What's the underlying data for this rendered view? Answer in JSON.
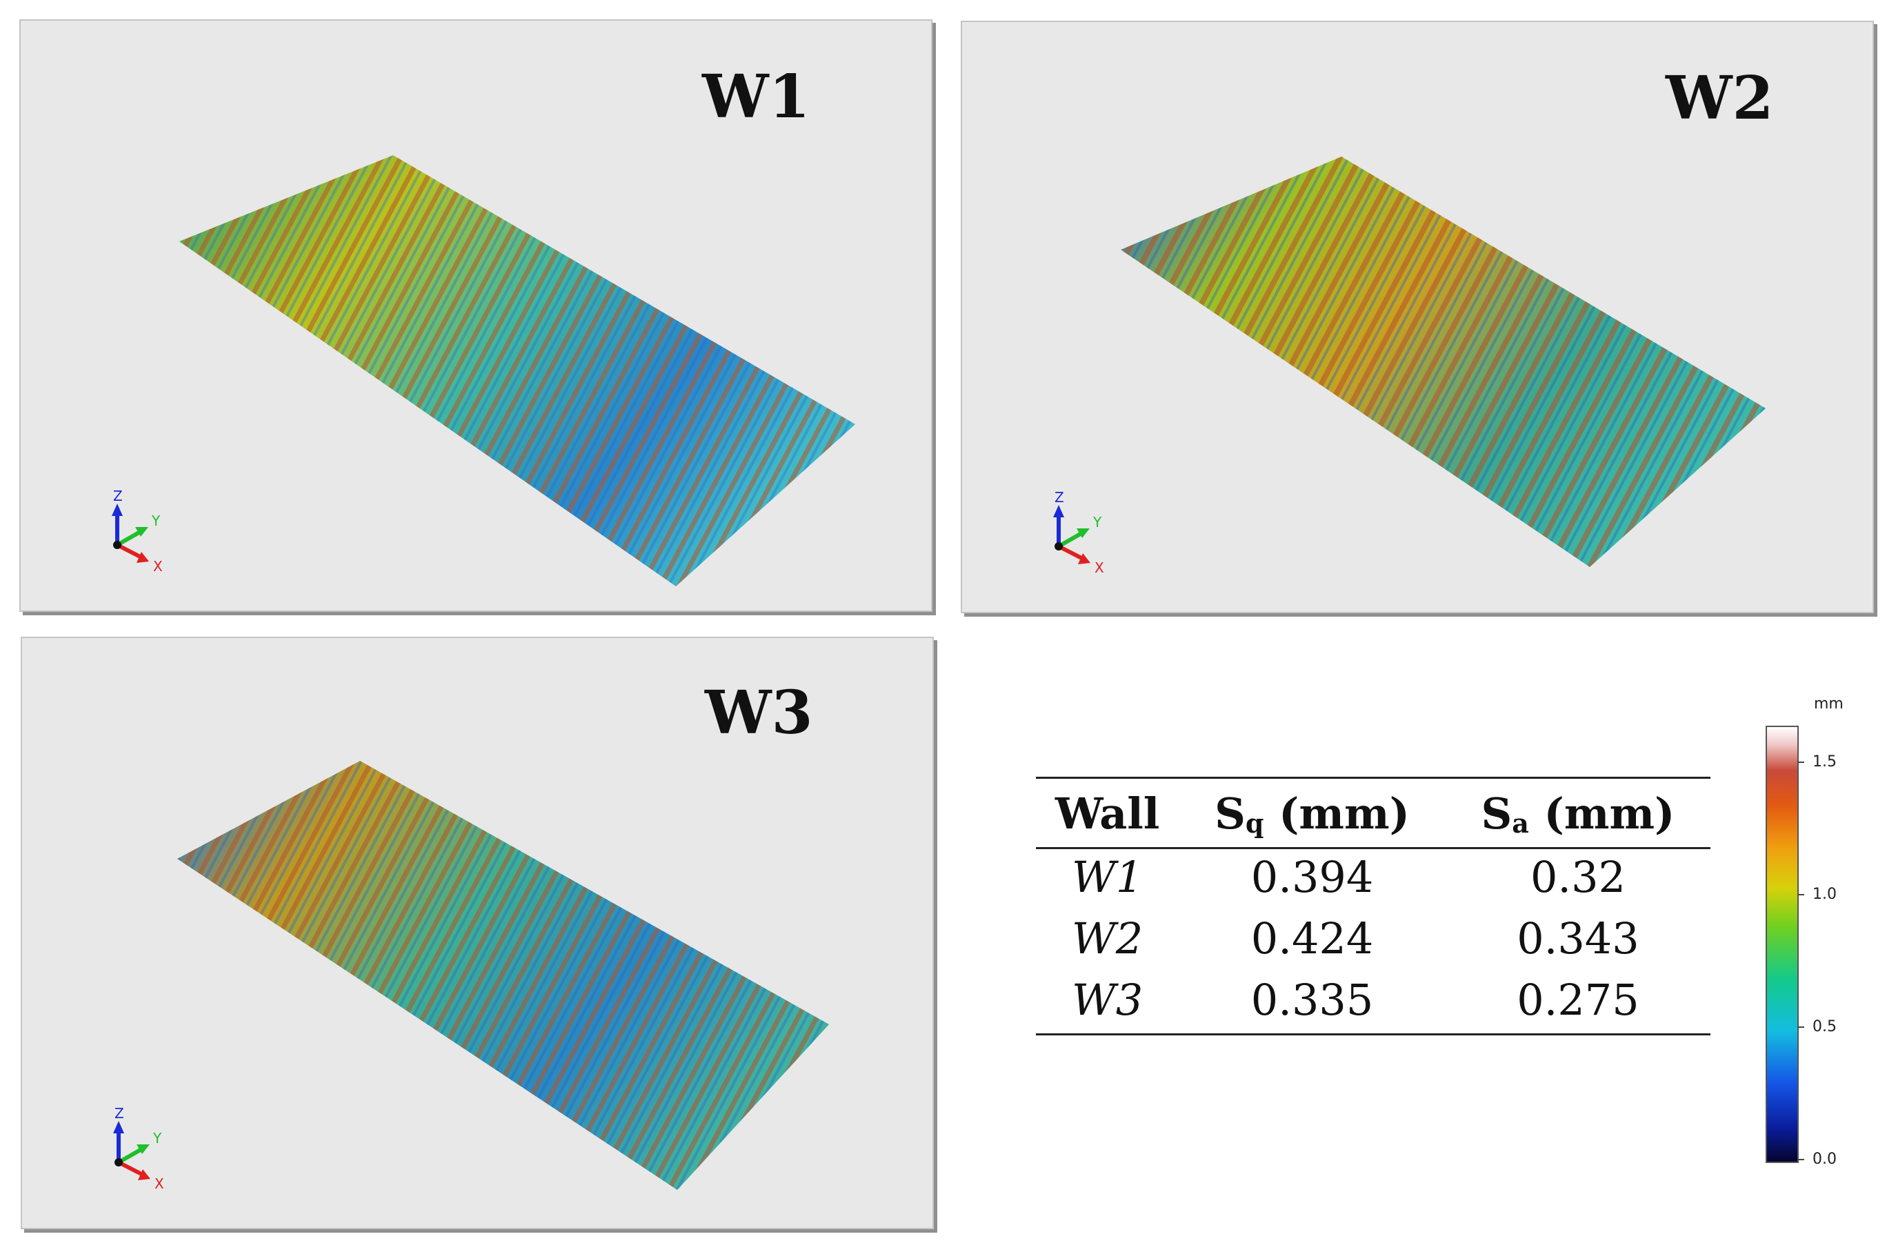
{
  "panels": [
    {
      "label": "W1"
    },
    {
      "label": "W2"
    },
    {
      "label": "W3"
    }
  ],
  "axes": {
    "x": "X",
    "y": "Y",
    "z": "Z"
  },
  "table": {
    "headers": {
      "wall": "Wall",
      "sq_symbol": "S",
      "sq_sub": "q",
      "sq_unit": " (mm)",
      "sa_symbol": "S",
      "sa_sub": "a",
      "sa_unit": " (mm)"
    },
    "rows": [
      {
        "wall": "W1",
        "sq": "0.394",
        "sa": "0.32"
      },
      {
        "wall": "W2",
        "sq": "0.424",
        "sa": "0.343"
      },
      {
        "wall": "W3",
        "sq": "0.335",
        "sa": "0.275"
      }
    ]
  },
  "colorbar": {
    "unit": "mm",
    "ticks": [
      "0.0",
      "0.5",
      "1.0",
      "1.5"
    ],
    "range": [
      0.0,
      1.6
    ],
    "colors": {
      "low": "#05052e",
      "mid": "#6fd020",
      "high": "#ffffff"
    }
  }
}
